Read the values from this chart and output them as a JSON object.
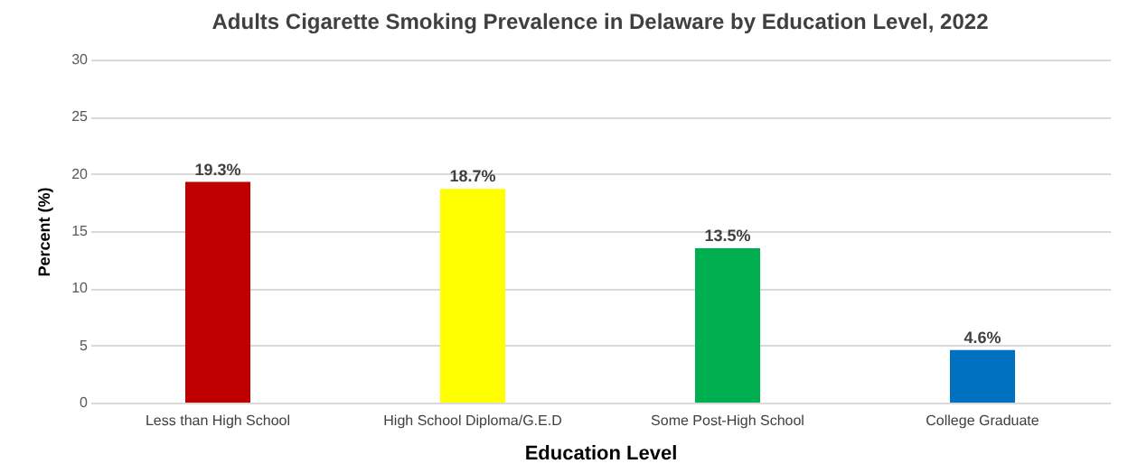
{
  "chart_data": {
    "type": "bar",
    "title": "Adults Cigarette Smoking Prevalence in Delaware by Education Level, 2022",
    "xlabel": "Education Level",
    "ylabel": "Percent (%)",
    "categories": [
      "Less than High School",
      "High School Diploma/G.E.D",
      "Some Post-High School",
      "College Graduate"
    ],
    "values": [
      19.3,
      18.7,
      13.5,
      4.6
    ],
    "colors": [
      "#c00000",
      "#ffff00",
      "#00b050",
      "#0070c0"
    ],
    "value_labels": [
      "19.3%",
      "18.7%",
      "13.5%",
      "4.6%"
    ],
    "ylim": [
      0,
      30
    ],
    "yticks": [
      0,
      5,
      10,
      15,
      20,
      25,
      30
    ],
    "grid": "y"
  }
}
